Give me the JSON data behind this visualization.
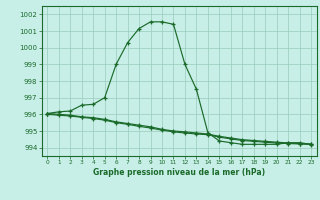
{
  "title": "Graphe pression niveau de la mer (hPa)",
  "bg_color": "#c8eee8",
  "grid_color": "#99ccbb",
  "line_color": "#1a6b2a",
  "xlim": [
    -0.5,
    23.5
  ],
  "ylim": [
    993.5,
    1002.5
  ],
  "yticks": [
    994,
    995,
    996,
    997,
    998,
    999,
    1000,
    1001,
    1002
  ],
  "xticks": [
    0,
    1,
    2,
    3,
    4,
    5,
    6,
    7,
    8,
    9,
    10,
    11,
    12,
    13,
    14,
    15,
    16,
    17,
    18,
    19,
    20,
    21,
    22,
    23
  ],
  "line1": {
    "x": [
      0,
      1,
      2,
      3,
      4,
      5,
      6,
      7,
      8,
      9,
      10,
      11,
      12,
      13,
      14,
      15,
      16,
      17,
      18,
      19,
      20,
      21,
      22,
      23
    ],
    "y": [
      996.05,
      996.15,
      996.2,
      996.55,
      996.6,
      997.0,
      999.0,
      1000.3,
      1001.15,
      1001.55,
      1001.55,
      1001.4,
      999.0,
      997.5,
      994.9,
      994.4,
      994.3,
      994.2,
      994.2,
      994.2,
      994.2,
      994.3,
      994.3,
      994.2
    ]
  },
  "line2": {
    "x": [
      0,
      1,
      2,
      3,
      4,
      5,
      6,
      7,
      8,
      9,
      10,
      11,
      12,
      13,
      14,
      15,
      16,
      17,
      18,
      19,
      20,
      21,
      22,
      23
    ],
    "y": [
      996.05,
      996.0,
      995.95,
      995.85,
      995.8,
      995.7,
      995.55,
      995.45,
      995.35,
      995.25,
      995.1,
      995.0,
      994.95,
      994.88,
      994.82,
      994.68,
      994.58,
      994.48,
      994.43,
      994.38,
      994.33,
      994.28,
      994.25,
      994.22
    ]
  },
  "line3": {
    "x": [
      0,
      1,
      2,
      3,
      4,
      5,
      6,
      7,
      8,
      9,
      10,
      11,
      12,
      13,
      14,
      15,
      16,
      17,
      18,
      19,
      20,
      21,
      22,
      23
    ],
    "y": [
      996.0,
      995.95,
      995.9,
      995.82,
      995.75,
      995.65,
      995.5,
      995.4,
      995.28,
      995.18,
      995.05,
      994.95,
      994.88,
      994.82,
      994.78,
      994.63,
      994.53,
      994.43,
      994.38,
      994.33,
      994.28,
      994.25,
      994.22,
      994.19
    ]
  }
}
